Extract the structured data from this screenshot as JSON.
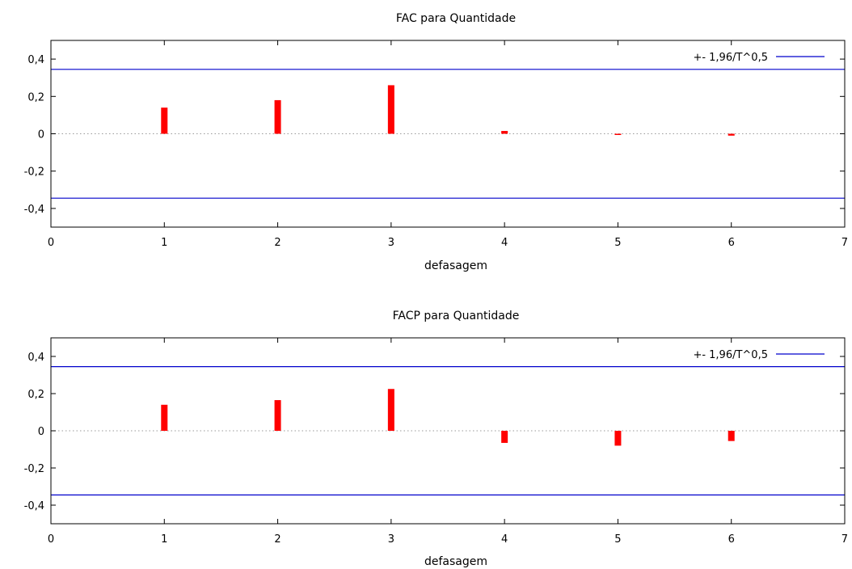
{
  "chart_data": [
    {
      "type": "bar",
      "title": "FAC para Quantidade",
      "xlabel": "defasagem",
      "ylabel": "",
      "xlim": [
        0,
        7
      ],
      "ylim": [
        -0.5,
        0.5
      ],
      "xticks": [
        "0",
        "1",
        "2",
        "3",
        "4",
        "5",
        "6",
        "7"
      ],
      "yticks": [
        {
          "value": 0.4,
          "label": "0,4"
        },
        {
          "value": 0.2,
          "label": "0,2"
        },
        {
          "value": 0,
          "label": "0"
        },
        {
          "value": -0.2,
          "label": "-0,2"
        },
        {
          "value": -0.4,
          "label": "-0,4"
        }
      ],
      "x": [
        1,
        2,
        3,
        4,
        5,
        6
      ],
      "values": [
        0.14,
        0.18,
        0.26,
        0.015,
        -0.003,
        -0.01
      ],
      "bar_color": "#ff0000",
      "bounds": {
        "name": "+- 1,96/T^0,5",
        "value": 0.345,
        "color": "#0000cc"
      },
      "legend_position": "top-right",
      "zero_line": "dotted"
    },
    {
      "type": "bar",
      "title": "FACP para Quantidade",
      "xlabel": "defasagem",
      "ylabel": "",
      "xlim": [
        0,
        7
      ],
      "ylim": [
        -0.5,
        0.5
      ],
      "xticks": [
        "0",
        "1",
        "2",
        "3",
        "4",
        "5",
        "6",
        "7"
      ],
      "yticks": [
        {
          "value": 0.4,
          "label": "0,4"
        },
        {
          "value": 0.2,
          "label": "0,2"
        },
        {
          "value": 0,
          "label": "0"
        },
        {
          "value": -0.2,
          "label": "-0,2"
        },
        {
          "value": -0.4,
          "label": "-0,4"
        }
      ],
      "x": [
        1,
        2,
        3,
        4,
        5,
        6
      ],
      "values": [
        0.14,
        0.165,
        0.225,
        -0.065,
        -0.08,
        -0.055
      ],
      "bar_color": "#ff0000",
      "bounds": {
        "name": "+- 1,96/T^0,5",
        "value": 0.345,
        "color": "#0000cc"
      },
      "legend_position": "top-right",
      "zero_line": "dotted"
    }
  ]
}
